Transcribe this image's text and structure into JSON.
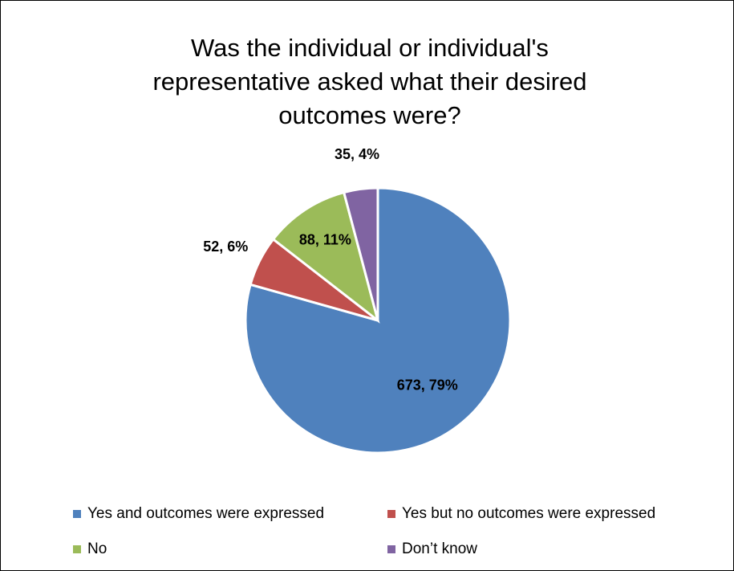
{
  "chart_data": {
    "type": "pie",
    "title": "Was the individual or individual's\nrepresentative asked what their desired\noutcomes were?",
    "categories": [
      "Yes and outcomes were expressed",
      "Yes but no outcomes were expressed",
      "No",
      "Don’t know"
    ],
    "values": [
      673,
      52,
      88,
      35
    ],
    "percent_labels": [
      "673, 79%",
      "52, 6%",
      "88, 11%",
      "35, 4%"
    ],
    "colors": [
      "#4F81BD",
      "#C0504D",
      "#9BBB59",
      "#8064A2"
    ],
    "legend_position": "bottom",
    "start_angle": "12 o'clock, clockwise"
  }
}
